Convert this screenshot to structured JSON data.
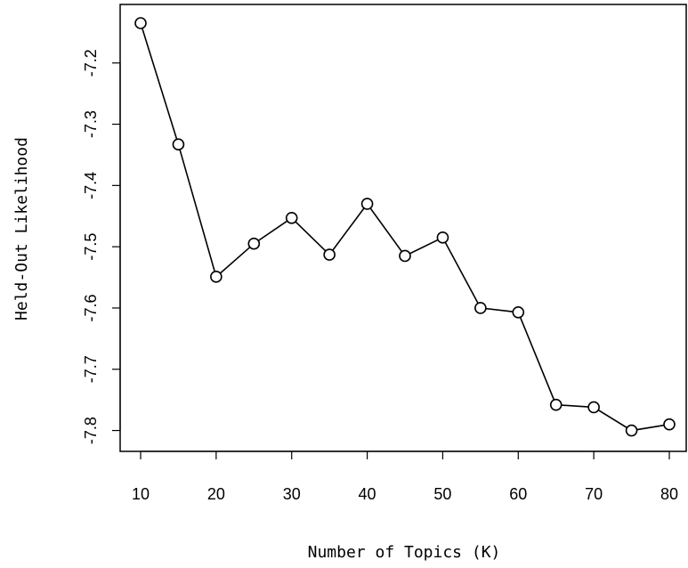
{
  "chart_data": {
    "type": "line",
    "title": "",
    "xlabel": "Number of Topics (K)",
    "ylabel": "Held-Out Likelihood",
    "xlim": [
      10,
      80
    ],
    "ylim": [
      -7.805,
      -7.135
    ],
    "x_ticks": [
      10,
      20,
      30,
      40,
      50,
      60,
      70,
      80
    ],
    "y_ticks": [
      -7.8,
      -7.7,
      -7.6,
      -7.5,
      -7.4,
      -7.3,
      -7.2
    ],
    "y_tick_labels": [
      "-7.8",
      "-7.7",
      "-7.6",
      "-7.5",
      "-7.4",
      "-7.3",
      "-7.2"
    ],
    "grid": false,
    "marker": "open-circle",
    "series": [
      {
        "x": [
          10,
          15,
          20,
          25,
          30,
          35,
          40,
          45,
          50,
          55,
          60,
          65,
          70,
          75,
          80
        ],
        "values": [
          -7.135,
          -7.333,
          -7.549,
          -7.495,
          -7.453,
          -7.513,
          -7.43,
          -7.515,
          -7.485,
          -7.6,
          -7.607,
          -7.758,
          -7.762,
          -7.8,
          -7.79
        ]
      }
    ]
  }
}
